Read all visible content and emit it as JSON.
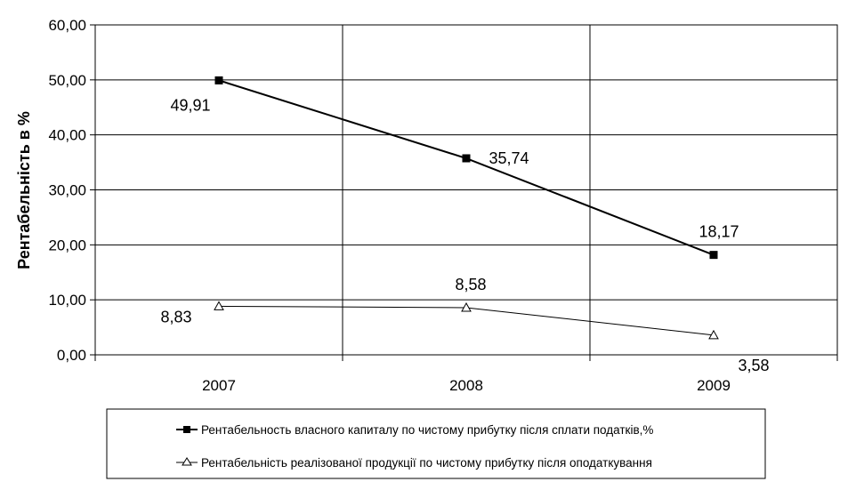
{
  "chart_data": {
    "type": "line",
    "title": "",
    "xlabel": "",
    "ylabel": "Рентабельність в %",
    "categories": [
      "2007",
      "2008",
      "2009"
    ],
    "ylim": [
      0,
      60
    ],
    "yticks": [
      "0,00",
      "10,00",
      "20,00",
      "30,00",
      "40,00",
      "50,00",
      "60,00"
    ],
    "grid": true,
    "legend_position": "bottom",
    "series": [
      {
        "name": "Рентабельность власного капиталу  по чистому прибутку після сплати податків,%",
        "values": [
          49.91,
          35.74,
          18.17
        ],
        "labels": [
          "49,91",
          "35,74",
          "18,17"
        ],
        "marker": "filled-square",
        "color": "#000000"
      },
      {
        "name": "Рентабельність реалізованої продукції по чистому прибутку після оподаткування",
        "values": [
          8.83,
          8.58,
          3.58
        ],
        "labels": [
          "8,83",
          "8,58",
          "3,58"
        ],
        "marker": "open-triangle",
        "color": "#000000"
      }
    ]
  }
}
